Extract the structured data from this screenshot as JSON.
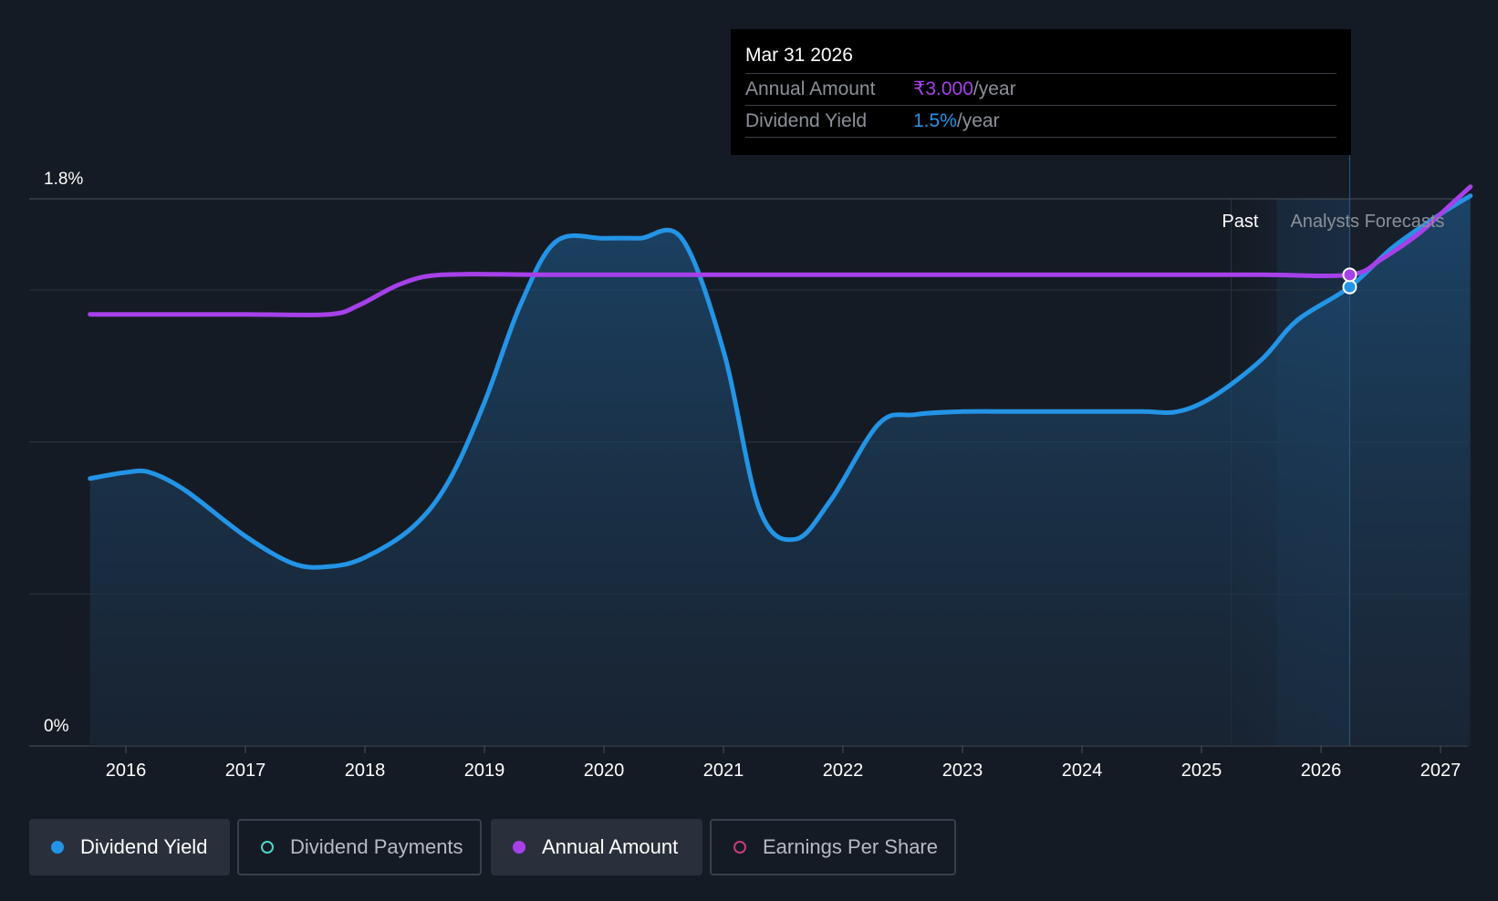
{
  "chart_data": {
    "type": "line",
    "y_axis": {
      "min": 0,
      "max": 1.8,
      "top_label": "1.8%",
      "bottom_label": "0%"
    },
    "x_axis": {
      "ticks": [
        "2016",
        "2017",
        "2018",
        "2019",
        "2020",
        "2021",
        "2022",
        "2023",
        "2024",
        "2025",
        "2026",
        "2027"
      ]
    },
    "regions": {
      "past_label": "Past",
      "forecast_label": "Analysts Forecasts"
    },
    "series": [
      {
        "name": "Dividend Yield",
        "color": "#2394e6",
        "area": true,
        "points": [
          [
            2015.7,
            0.88
          ],
          [
            2016.0,
            0.9
          ],
          [
            2016.2,
            0.9
          ],
          [
            2016.5,
            0.84
          ],
          [
            2017.0,
            0.69
          ],
          [
            2017.4,
            0.6
          ],
          [
            2017.7,
            0.59
          ],
          [
            2018.0,
            0.62
          ],
          [
            2018.4,
            0.72
          ],
          [
            2018.7,
            0.87
          ],
          [
            2019.0,
            1.13
          ],
          [
            2019.3,
            1.45
          ],
          [
            2019.6,
            1.66
          ],
          [
            2020.0,
            1.67
          ],
          [
            2020.3,
            1.67
          ],
          [
            2020.65,
            1.67
          ],
          [
            2021.0,
            1.3
          ],
          [
            2021.3,
            0.78
          ],
          [
            2021.6,
            0.68
          ],
          [
            2021.9,
            0.81
          ],
          [
            2022.3,
            1.06
          ],
          [
            2022.6,
            1.09
          ],
          [
            2023.0,
            1.1
          ],
          [
            2023.5,
            1.1
          ],
          [
            2024.0,
            1.1
          ],
          [
            2024.5,
            1.1
          ],
          [
            2024.8,
            1.1
          ],
          [
            2025.1,
            1.15
          ],
          [
            2025.5,
            1.27
          ],
          [
            2025.8,
            1.4
          ],
          [
            2026.24,
            1.51
          ],
          [
            2026.6,
            1.64
          ],
          [
            2027.0,
            1.75
          ],
          [
            2027.25,
            1.81
          ]
        ]
      },
      {
        "name": "Annual Amount",
        "color": "#a641ea",
        "area": false,
        "points": [
          [
            2015.7,
            1.42
          ],
          [
            2016.5,
            1.42
          ],
          [
            2017.0,
            1.42
          ],
          [
            2017.7,
            1.42
          ],
          [
            2017.95,
            1.45
          ],
          [
            2018.3,
            1.52
          ],
          [
            2018.65,
            1.55
          ],
          [
            2019.5,
            1.55
          ],
          [
            2020.5,
            1.55
          ],
          [
            2021.5,
            1.55
          ],
          [
            2022.5,
            1.55
          ],
          [
            2023.5,
            1.55
          ],
          [
            2024.5,
            1.55
          ],
          [
            2025.5,
            1.55
          ],
          [
            2026.24,
            1.55
          ],
          [
            2026.5,
            1.6
          ],
          [
            2026.8,
            1.68
          ],
          [
            2027.0,
            1.75
          ],
          [
            2027.25,
            1.84
          ]
        ]
      }
    ],
    "highlight_x": 2026.24
  },
  "tooltip": {
    "date": "Mar 31 2026",
    "rows": [
      {
        "label": "Annual Amount",
        "value": "₹3.000",
        "unit": "/year",
        "color": "#a641ea"
      },
      {
        "label": "Dividend Yield",
        "value": "1.5%",
        "unit": "/year",
        "color": "#2394e6"
      }
    ]
  },
  "legend": [
    {
      "label": "Dividend Yield",
      "color": "#2394e6",
      "active": true
    },
    {
      "label": "Dividend Payments",
      "color": "#4ed5c8",
      "active": false
    },
    {
      "label": "Annual Amount",
      "color": "#a641ea",
      "active": true
    },
    {
      "label": "Earnings Per Share",
      "color": "#c73b7c",
      "active": false
    }
  ]
}
